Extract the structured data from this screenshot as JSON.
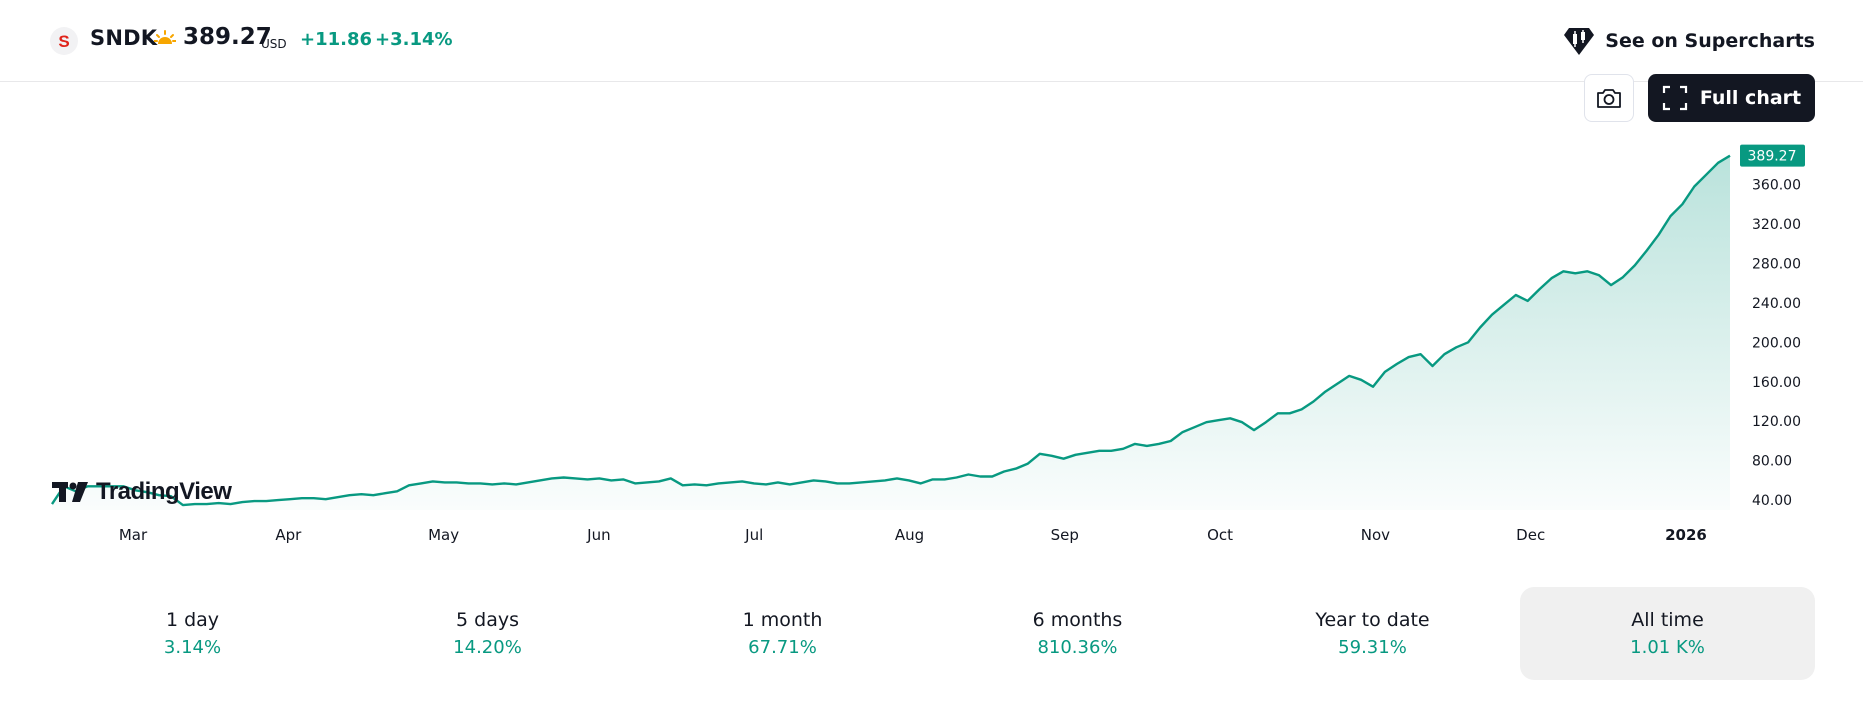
{
  "header": {
    "symbol_logo_letter": "S",
    "ticker": "SNDK",
    "session_icon": "sun-icon",
    "price": "389.27",
    "currency": "USD",
    "change": "+11.86",
    "change_pct": "+3.14%",
    "supercharts_label": "See on Supercharts",
    "supercharts_icon": "tradingview-candle-icon"
  },
  "toolbar": {
    "camera_icon": "camera-icon",
    "full_chart_label": "Full chart",
    "full_chart_icon": "expand-icon"
  },
  "brand": {
    "name": "TradingView",
    "logo_icon": "tradingview-logo-icon"
  },
  "colors": {
    "accent": "#089981",
    "line": "#089981",
    "text": "#131722",
    "active_period_bg": "#f0f0f0"
  },
  "chart_data": {
    "type": "area",
    "series": [
      {
        "values": [
          36,
          54,
          49,
          54,
          54,
          54,
          54,
          50,
          48,
          45,
          44,
          35,
          36,
          36,
          37,
          36,
          38,
          39,
          39,
          40,
          41,
          42,
          42,
          41,
          43,
          45,
          46,
          45,
          47,
          49,
          55,
          57,
          59,
          58,
          58,
          57,
          57,
          56,
          57,
          56,
          58,
          60,
          62,
          63,
          62,
          61,
          62,
          60,
          61,
          57,
          58,
          59,
          62,
          55,
          56,
          55,
          57,
          58,
          59,
          57,
          56,
          58,
          56,
          58,
          60,
          59,
          57,
          57,
          58,
          59,
          60,
          62,
          60,
          57,
          61,
          61,
          63,
          66,
          64,
          64,
          69,
          72,
          77,
          87,
          85,
          82,
          86,
          88,
          90,
          90,
          92,
          97,
          95,
          97,
          100,
          109,
          114,
          119,
          121,
          123,
          119,
          111,
          119,
          128,
          128,
          132,
          140,
          150,
          158,
          166,
          162,
          155,
          170,
          178,
          185,
          188,
          176,
          188,
          195,
          200,
          215,
          228,
          238,
          248,
          242,
          254,
          265,
          272,
          270,
          272,
          268,
          258,
          266,
          278,
          293,
          309,
          328,
          340,
          358,
          370,
          382,
          389.27
        ]
      }
    ],
    "x_ticks": [
      "Mar",
      "Apr",
      "May",
      "Jun",
      "Jul",
      "Aug",
      "Sep",
      "Oct",
      "Nov",
      "Dec",
      "2026"
    ],
    "y_ticks": [
      "40.00",
      "80.00",
      "120.00",
      "160.00",
      "200.00",
      "240.00",
      "280.00",
      "320.00",
      "360.00"
    ],
    "y_tick_values": [
      40,
      80,
      120,
      160,
      200,
      240,
      280,
      320,
      360
    ],
    "ylim": [
      30,
      395
    ],
    "last_price_label": "389.27",
    "grid": false
  },
  "periods": [
    {
      "label": "1 day",
      "value": "3.14%",
      "active": false
    },
    {
      "label": "5 days",
      "value": "14.20%",
      "active": false
    },
    {
      "label": "1 month",
      "value": "67.71%",
      "active": false
    },
    {
      "label": "6 months",
      "value": "810.36%",
      "active": false
    },
    {
      "label": "Year to date",
      "value": "59.31%",
      "active": false
    },
    {
      "label": "All time",
      "value": "1.01 K%",
      "active": true
    }
  ]
}
